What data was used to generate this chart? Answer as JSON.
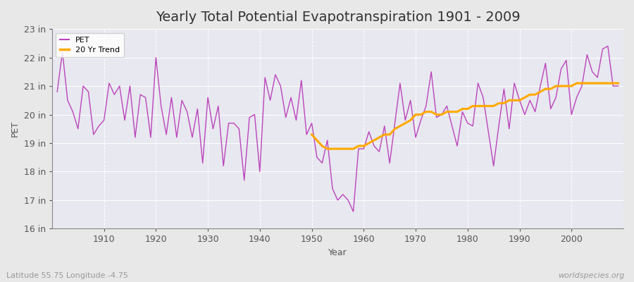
{
  "title": "Yearly Total Potential Evapotranspiration 1901 - 2009",
  "xlabel": "Year",
  "ylabel": "PET",
  "lat_lon_label": "Latitude 55.75 Longitude -4.75",
  "watermark": "worldspecies.org",
  "pet_color": "#bb44bb",
  "trend_color": "#ffaa00",
  "fig_bg_color": "#e8e8e8",
  "plot_bg_color": "#e8e8f0",
  "grid_color": "#ffffff",
  "ylim": [
    16,
    23
  ],
  "xlim": [
    1900,
    2010
  ],
  "ytick_labels": [
    "16 in",
    "17 in",
    "18 in",
    "19 in",
    "20 in",
    "21 in",
    "22 in",
    "23 in"
  ],
  "ytick_values": [
    16,
    17,
    18,
    19,
    20,
    21,
    22,
    23
  ],
  "xtick_values": [
    1910,
    1920,
    1930,
    1940,
    1950,
    1960,
    1970,
    1980,
    1990,
    2000
  ],
  "years": [
    1901,
    1902,
    1903,
    1904,
    1905,
    1906,
    1907,
    1908,
    1909,
    1910,
    1911,
    1912,
    1913,
    1914,
    1915,
    1916,
    1917,
    1918,
    1919,
    1920,
    1921,
    1922,
    1923,
    1924,
    1925,
    1926,
    1927,
    1928,
    1929,
    1930,
    1931,
    1932,
    1933,
    1934,
    1935,
    1936,
    1937,
    1938,
    1939,
    1940,
    1941,
    1942,
    1943,
    1944,
    1945,
    1946,
    1947,
    1948,
    1949,
    1950,
    1951,
    1952,
    1953,
    1954,
    1955,
    1956,
    1957,
    1958,
    1959,
    1960,
    1961,
    1962,
    1963,
    1964,
    1965,
    1966,
    1967,
    1968,
    1969,
    1970,
    1971,
    1972,
    1973,
    1974,
    1975,
    1976,
    1977,
    1978,
    1979,
    1980,
    1981,
    1982,
    1983,
    1984,
    1985,
    1986,
    1987,
    1988,
    1989,
    1990,
    1991,
    1992,
    1993,
    1994,
    1995,
    1996,
    1997,
    1998,
    1999,
    2000,
    2001,
    2002,
    2003,
    2004,
    2005,
    2006,
    2007,
    2008,
    2009
  ],
  "pet_values": [
    20.8,
    22.2,
    20.5,
    20.1,
    19.5,
    21.0,
    20.8,
    19.3,
    19.6,
    19.8,
    21.1,
    20.7,
    21.0,
    19.8,
    21.0,
    19.2,
    20.7,
    20.6,
    19.2,
    22.0,
    20.3,
    19.3,
    20.6,
    19.2,
    20.5,
    20.1,
    19.2,
    20.2,
    18.3,
    20.6,
    19.5,
    20.3,
    18.2,
    19.7,
    19.7,
    19.5,
    17.7,
    19.9,
    20.0,
    18.0,
    21.3,
    20.5,
    21.4,
    21.0,
    19.9,
    20.6,
    19.8,
    21.2,
    19.3,
    19.7,
    18.5,
    18.3,
    19.1,
    17.4,
    17.0,
    17.2,
    17.0,
    16.6,
    18.8,
    18.8,
    19.4,
    18.9,
    18.7,
    19.6,
    18.3,
    19.7,
    21.1,
    19.8,
    20.5,
    19.2,
    19.8,
    20.3,
    21.5,
    19.9,
    20.0,
    20.3,
    19.6,
    18.9,
    20.1,
    19.7,
    19.6,
    21.1,
    20.6,
    19.4,
    18.2,
    19.6,
    20.9,
    19.5,
    21.1,
    20.5,
    20.0,
    20.5,
    20.1,
    21.0,
    21.8,
    20.2,
    20.6,
    21.6,
    21.9,
    20.0,
    20.6,
    21.0,
    22.1,
    21.5,
    21.3,
    22.3,
    22.4,
    21.0,
    21.0
  ],
  "trend_years": [
    1950,
    1951,
    1952,
    1953,
    1954,
    1955,
    1956,
    1957,
    1958,
    1959,
    1960,
    1961,
    1962,
    1963,
    1964,
    1965,
    1966,
    1967,
    1968,
    1969,
    1970,
    1971,
    1972,
    1973,
    1974,
    1975,
    1976,
    1977,
    1978,
    1979,
    1980,
    1981,
    1982,
    1983,
    1984,
    1985,
    1986,
    1987,
    1988,
    1989,
    1990,
    1991,
    1992,
    1993,
    1994,
    1995,
    1996,
    1997,
    1998,
    1999,
    2000,
    2001,
    2002,
    2003,
    2004,
    2005,
    2006,
    2007,
    2008,
    2009
  ],
  "trend_values": [
    19.3,
    19.1,
    18.9,
    18.8,
    18.8,
    18.8,
    18.8,
    18.8,
    18.8,
    18.9,
    18.9,
    19.0,
    19.1,
    19.2,
    19.3,
    19.3,
    19.5,
    19.6,
    19.7,
    19.8,
    20.0,
    20.0,
    20.1,
    20.1,
    20.0,
    20.0,
    20.1,
    20.1,
    20.1,
    20.2,
    20.2,
    20.3,
    20.3,
    20.3,
    20.3,
    20.3,
    20.4,
    20.4,
    20.5,
    20.5,
    20.5,
    20.6,
    20.7,
    20.7,
    20.8,
    20.9,
    20.9,
    21.0,
    21.0,
    21.0,
    21.0,
    21.1,
    21.1,
    21.1,
    21.1,
    21.1,
    21.1,
    21.1,
    21.1,
    21.1
  ],
  "legend_pet_label": "PET",
  "legend_trend_label": "20 Yr Trend",
  "title_fontsize": 14,
  "axis_label_fontsize": 9,
  "tick_fontsize": 9,
  "legend_fontsize": 8
}
